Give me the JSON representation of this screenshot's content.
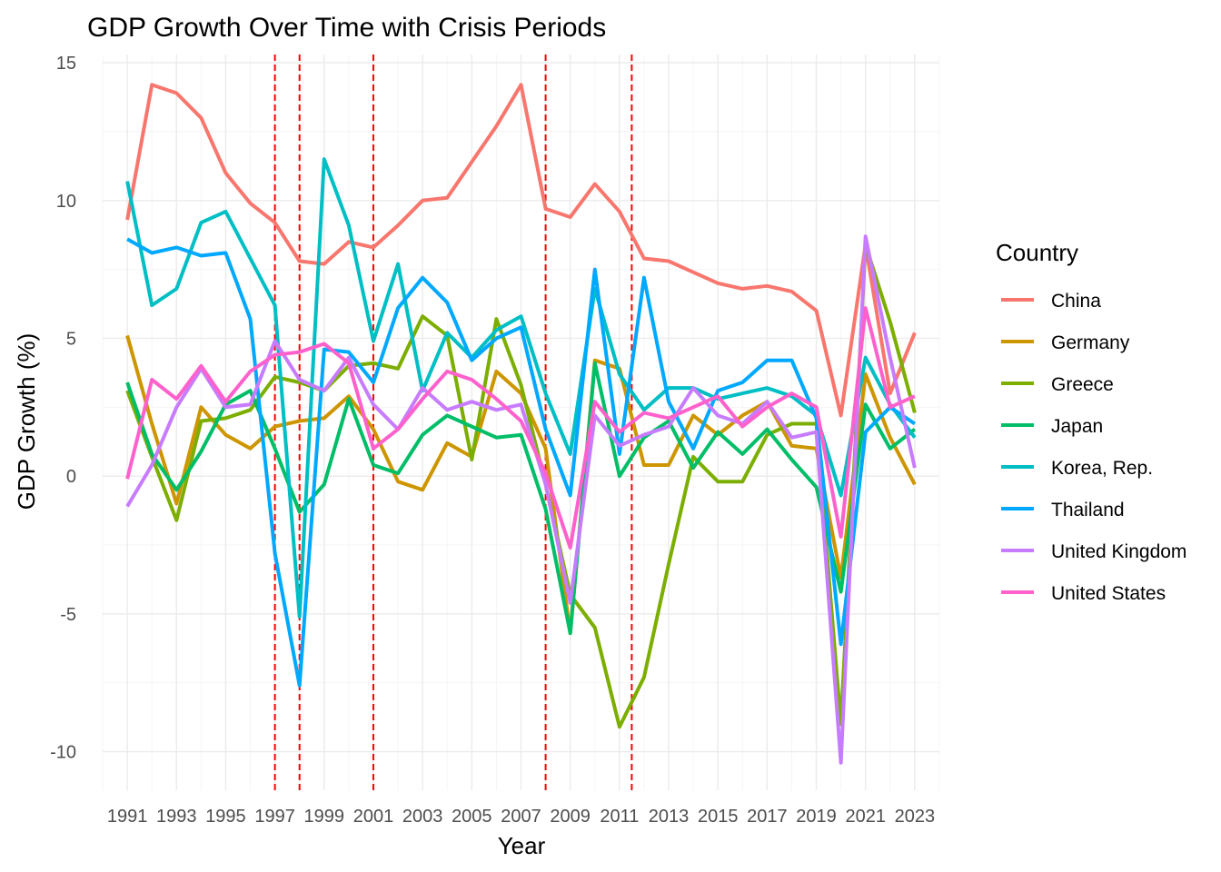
{
  "chart_data": {
    "type": "line",
    "title": "GDP Growth Over Time with Crisis Periods",
    "xlabel": "Year",
    "ylabel": "GDP Growth (%)",
    "xlim": [
      1990,
      2024
    ],
    "ylim": [
      -11.4,
      15.3
    ],
    "x_ticks": [
      1991,
      1993,
      1995,
      1997,
      1999,
      2001,
      2003,
      2005,
      2007,
      2009,
      2011,
      2013,
      2015,
      2017,
      2019,
      2021,
      2023
    ],
    "y_ticks": [
      -10,
      -5,
      0,
      5,
      10,
      15
    ],
    "grid": true,
    "legend": {
      "title": "Country",
      "position": "right"
    },
    "crisis_lines": {
      "years": [
        1997,
        1998,
        2001,
        2008,
        2011.5
      ],
      "color": "#ff0000",
      "style": "dashed"
    },
    "x": [
      1991,
      1992,
      1993,
      1994,
      1995,
      1996,
      1997,
      1998,
      1999,
      2000,
      2001,
      2002,
      2003,
      2004,
      2005,
      2006,
      2007,
      2008,
      2009,
      2010,
      2011,
      2012,
      2013,
      2014,
      2015,
      2016,
      2017,
      2018,
      2019,
      2020,
      2021,
      2022,
      2023
    ],
    "series": [
      {
        "name": "China",
        "color": "#F8766D",
        "values": [
          9.3,
          14.2,
          13.9,
          13.0,
          11.0,
          9.9,
          9.2,
          7.8,
          7.7,
          8.5,
          8.3,
          9.1,
          10.0,
          10.1,
          11.4,
          12.7,
          14.2,
          9.7,
          9.4,
          10.6,
          9.6,
          7.9,
          7.8,
          7.4,
          7.0,
          6.8,
          6.9,
          6.7,
          6.0,
          2.2,
          8.4,
          3.0,
          5.2
        ]
      },
      {
        "name": "Germany",
        "color": "#CD9600",
        "values": [
          5.1,
          1.9,
          -1.0,
          2.5,
          1.5,
          1.0,
          1.8,
          2.0,
          2.1,
          2.9,
          1.7,
          -0.2,
          -0.5,
          1.2,
          0.7,
          3.8,
          3.0,
          1.0,
          -5.7,
          4.2,
          3.9,
          0.4,
          0.4,
          2.2,
          1.5,
          2.2,
          2.7,
          1.1,
          1.0,
          -3.7,
          3.7,
          1.4,
          -0.3
        ]
      },
      {
        "name": "Greece",
        "color": "#7CAE00",
        "values": [
          3.1,
          0.7,
          -1.6,
          2.0,
          2.1,
          2.4,
          3.6,
          3.4,
          3.1,
          4.0,
          4.1,
          3.9,
          5.8,
          5.1,
          0.6,
          5.7,
          3.3,
          -0.3,
          -4.3,
          -5.5,
          -9.1,
          -7.3,
          -3.2,
          0.7,
          -0.2,
          -0.2,
          1.5,
          1.9,
          1.9,
          -9.0,
          8.4,
          5.6,
          2.3
        ]
      },
      {
        "name": "Japan",
        "color": "#00BE67",
        "values": [
          3.4,
          0.8,
          -0.5,
          0.9,
          2.6,
          3.1,
          1.0,
          -1.3,
          -0.3,
          2.8,
          0.4,
          0.1,
          1.5,
          2.2,
          1.8,
          1.4,
          1.5,
          -1.2,
          -5.7,
          4.1,
          0.0,
          1.4,
          2.0,
          0.3,
          1.6,
          0.8,
          1.7,
          0.6,
          -0.4,
          -4.2,
          2.6,
          1.0,
          1.7
        ]
      },
      {
        "name": "Korea, Rep.",
        "color": "#00BFC4",
        "values": [
          10.7,
          6.2,
          6.8,
          9.2,
          9.6,
          7.9,
          6.2,
          -5.1,
          11.5,
          9.1,
          4.9,
          7.7,
          3.1,
          5.2,
          4.3,
          5.3,
          5.8,
          3.0,
          0.8,
          6.8,
          3.7,
          2.4,
          3.2,
          3.2,
          2.8,
          3.0,
          3.2,
          2.9,
          2.2,
          -0.7,
          4.3,
          2.6,
          1.4
        ]
      },
      {
        "name": "Thailand",
        "color": "#00A9FF",
        "values": [
          8.6,
          8.1,
          8.3,
          8.0,
          8.1,
          5.7,
          -2.8,
          -7.6,
          4.6,
          4.5,
          3.4,
          6.1,
          7.2,
          6.3,
          4.2,
          5.0,
          5.4,
          1.7,
          -0.7,
          7.5,
          0.8,
          7.2,
          2.7,
          1.0,
          3.1,
          3.4,
          4.2,
          4.2,
          2.1,
          -6.1,
          1.6,
          2.5,
          1.9
        ]
      },
      {
        "name": "United Kingdom",
        "color": "#C77CFF",
        "values": [
          -1.1,
          0.4,
          2.5,
          3.9,
          2.5,
          2.6,
          4.9,
          3.5,
          3.1,
          4.3,
          2.6,
          1.7,
          3.2,
          2.4,
          2.7,
          2.4,
          2.6,
          -0.3,
          -4.6,
          2.2,
          1.1,
          1.5,
          1.8,
          3.2,
          2.2,
          1.9,
          2.7,
          1.4,
          1.6,
          -10.4,
          8.7,
          4.3,
          0.3
        ]
      },
      {
        "name": "United States",
        "color": "#FF61CC",
        "values": [
          -0.1,
          3.5,
          2.8,
          4.0,
          2.7,
          3.8,
          4.4,
          4.5,
          4.8,
          4.1,
          1.0,
          1.7,
          2.8,
          3.8,
          3.5,
          2.8,
          2.0,
          0.1,
          -2.6,
          2.7,
          1.6,
          2.3,
          2.1,
          2.5,
          2.9,
          1.8,
          2.5,
          3.0,
          2.5,
          -2.2,
          6.1,
          2.5,
          2.9
        ]
      }
    ]
  }
}
